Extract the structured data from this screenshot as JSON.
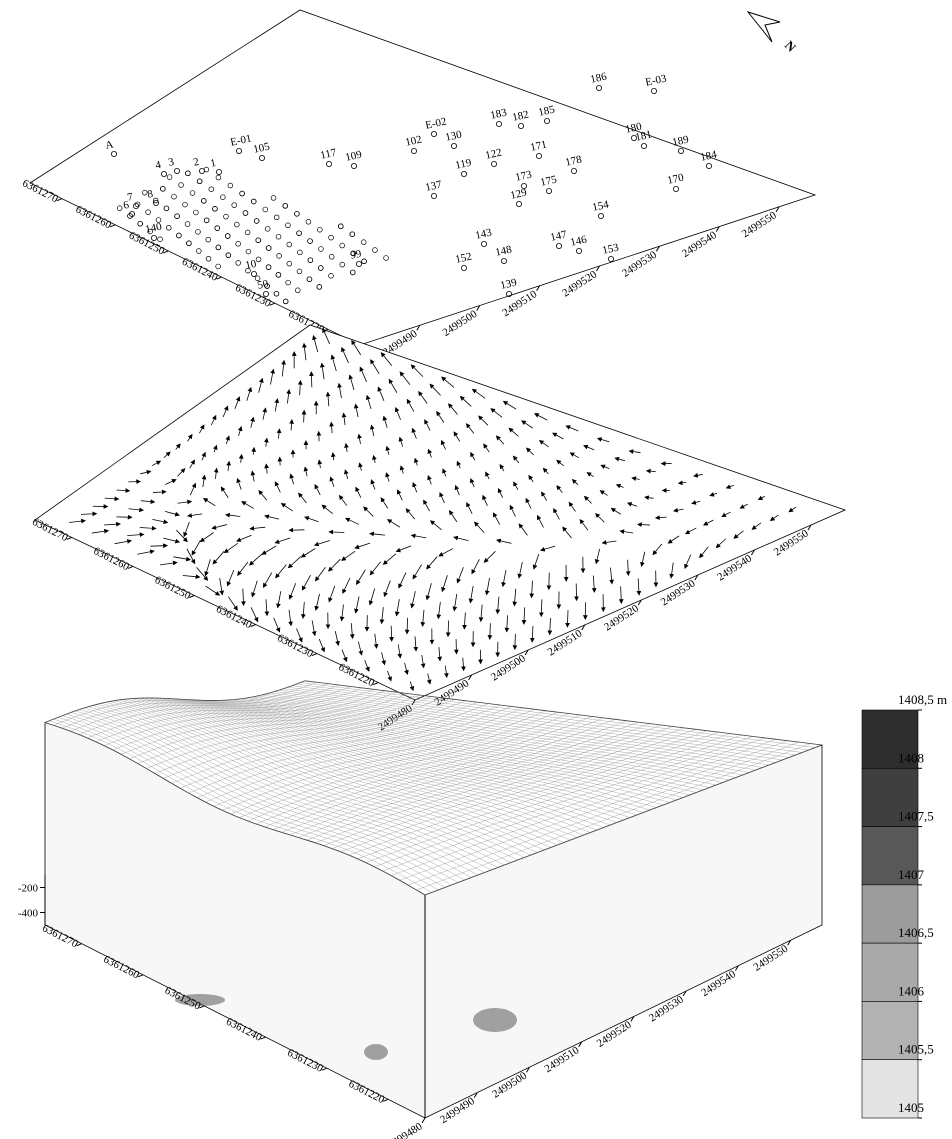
{
  "north": "N",
  "posting": {
    "xlim": [
      2499480,
      2499556
    ],
    "ylim": [
      6361214,
      6361276
    ],
    "xticks": [
      2499480,
      2499490,
      2499500,
      2499510,
      2499520,
      2499530,
      2499540,
      2499550
    ],
    "yticks": [
      6361220,
      6361230,
      6361240,
      6361250,
      6361260,
      6361270
    ],
    "points": [
      "A",
      "E-01",
      "E-02",
      "E-03",
      "186",
      "183",
      "182",
      "185",
      "180",
      "181",
      "189",
      "184",
      "102",
      "130",
      "117",
      "119",
      "171",
      "170",
      "154",
      "153",
      "139",
      "148",
      "146",
      "137",
      "109",
      "105",
      "4",
      "3",
      "2",
      "1",
      "7",
      "8",
      "6",
      "50",
      "140",
      "10",
      "99",
      "152",
      "178",
      "175",
      "173",
      "143",
      "147",
      "122",
      "129"
    ]
  },
  "vectors": {
    "xlim": [
      2499480,
      2499556
    ],
    "ylim": [
      6361214,
      6361276
    ],
    "xticks": [
      2499480,
      2499490,
      2499500,
      2499510,
      2499520,
      2499530,
      2499540,
      2499550
    ],
    "yticks": [
      6361220,
      6361230,
      6361240,
      6361250,
      6361260,
      6361270
    ]
  },
  "surface": {
    "xlim": [
      2499480,
      2499556
    ],
    "ylim": [
      6361214,
      6361276
    ],
    "zlim": [
      -500,
      -100
    ],
    "xticks": [
      2499480,
      2499490,
      2499500,
      2499510,
      2499520,
      2499530,
      2499540,
      2499550
    ],
    "yticks": [
      6361220,
      6361230,
      6361240,
      6361250,
      6361260,
      6361270
    ],
    "zticks": [
      -200,
      -400
    ]
  },
  "legend": {
    "range": [
      1405,
      1408.5
    ],
    "levels": [
      {
        "value": 1408.5,
        "label": "1408,5 m"
      },
      {
        "value": 1408,
        "label": "1408"
      },
      {
        "value": 1407.5,
        "label": "1407,5"
      },
      {
        "value": 1407,
        "label": "1407"
      },
      {
        "value": 1406.5,
        "label": "1406,5"
      },
      {
        "value": 1406,
        "label": "1406"
      },
      {
        "value": 1405.5,
        "label": "1405,5"
      },
      {
        "value": 1405,
        "label": "1405"
      }
    ],
    "colors": [
      "#2e2e2e",
      "#3f3f3f",
      "#585858",
      "#9c9c9c",
      "#a9a9a9",
      "#b2b2b2",
      "#e4e4e4"
    ]
  }
}
